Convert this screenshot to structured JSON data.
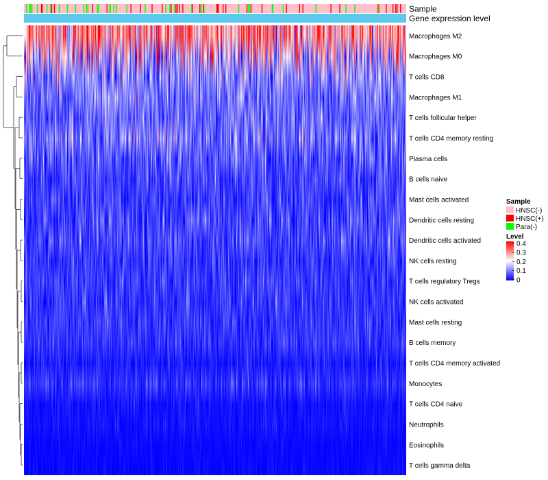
{
  "chart_data": {
    "type": "heatmap",
    "title": "",
    "annotation_tracks": {
      "sample_label": "Sample",
      "expression_label": "Gene expression level"
    },
    "n_samples": 560,
    "row_labels": [
      "Macrophages M2",
      "Macrophages M0",
      "T cells CD8",
      "Macrophages M1",
      "T cells follicular helper",
      "T cells CD4 memory resting",
      "Plasma cells",
      "B cells naive",
      "Mast cells activated",
      "Dendritic cells resting",
      "Dendritic cells activated",
      "NK cells resting",
      "T cells regulatory  Tregs",
      "NK cells activated",
      "Mast cells resting",
      "B cells memory",
      "T cells CD4 memory activated",
      "Monocytes",
      "T cells CD4 naive",
      "Neutrophils",
      "Eosinophils",
      "T cells gamma delta"
    ],
    "row_mean_level": [
      0.28,
      0.17,
      0.1,
      0.085,
      0.075,
      0.085,
      0.06,
      0.045,
      0.045,
      0.05,
      0.05,
      0.04,
      0.045,
      0.035,
      0.04,
      0.035,
      0.02,
      0.035,
      0.012,
      0.012,
      0.006,
      0.005
    ],
    "row_variability": [
      0.09,
      0.13,
      0.07,
      0.05,
      0.045,
      0.06,
      0.045,
      0.035,
      0.035,
      0.045,
      0.04,
      0.03,
      0.03,
      0.03,
      0.03,
      0.03,
      0.02,
      0.025,
      0.015,
      0.012,
      0.008,
      0.008
    ],
    "sample_groups": [
      "HNSC(-)",
      "HNSC(+)",
      "Para(-)"
    ],
    "sample_group_fractions": [
      0.86,
      0.07,
      0.07
    ],
    "legend": {
      "sample_title": "Sample",
      "sample_entries": [
        {
          "label": "HNSC(-)",
          "color": "#FFC0CB"
        },
        {
          "label": "HNSC(+)",
          "color": "#FF0000"
        },
        {
          "label": "Para(-)",
          "color": "#00FF00"
        }
      ],
      "level_title": "Level",
      "level_ticks": [
        "0.4",
        "0.3",
        "0.2",
        "0.1",
        "0"
      ],
      "level_range": [
        0,
        0.4
      ]
    },
    "colorscale": {
      "low": "#0000FF",
      "mid": "#FFFFFF",
      "high": "#FF0000",
      "mid_value": 0.2
    },
    "expression_track_color": "#5BC8EE",
    "dendrogram": "rows clustered (hierarchical), left side"
  }
}
